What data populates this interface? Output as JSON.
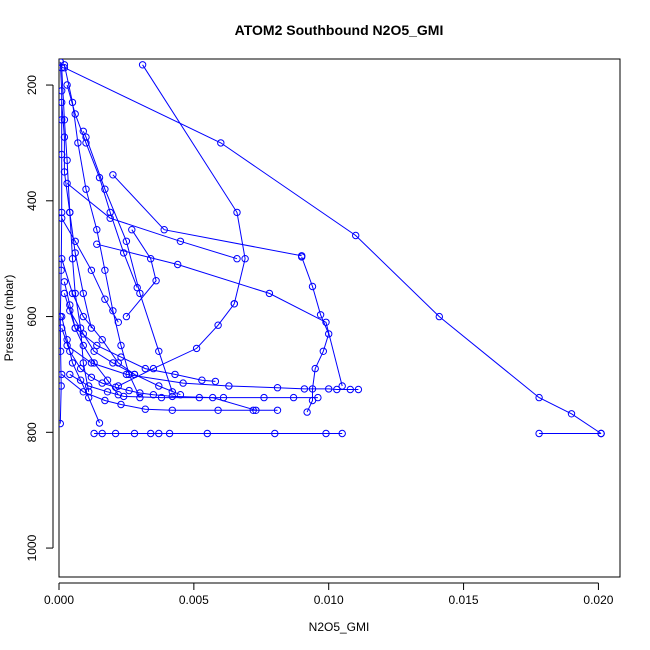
{
  "chart_data": {
    "type": "line",
    "title": "ATOM2 Southbound N2O5_GMI",
    "xlabel": "N2O5_GMI",
    "ylabel": "Pressure (mbar)",
    "xlim": [
      0.0,
      0.0208
    ],
    "ylim": [
      1050,
      155
    ],
    "y_reversed": true,
    "x_ticks": [
      0.0,
      0.005,
      0.01,
      0.015,
      0.02
    ],
    "x_tick_labels": [
      "0.000",
      "0.005",
      "0.010",
      "0.015",
      "0.020"
    ],
    "y_ticks": [
      200,
      400,
      600,
      800,
      1000
    ],
    "y_tick_labels": [
      "200",
      "400",
      "600",
      "800",
      "1000"
    ],
    "series_color": "#0000ff",
    "grid": false,
    "marker": "open-circle",
    "series": [
      {
        "x": [
          5e-05,
          0.0001,
          0.0001,
          0.0001,
          0.0001,
          8e-05,
          5e-05,
          6e-05,
          8e-05,
          5e-05
        ],
        "y": [
          160,
          210,
          260,
          320,
          420,
          520,
          600,
          660,
          720,
          785
        ]
      },
      {
        "x": [
          0.0001,
          0.0002,
          0.0003,
          0.0004,
          0.0005,
          0.0006,
          0.0008,
          0.0009,
          0.0011
        ],
        "y": [
          170,
          260,
          330,
          420,
          500,
          560,
          620,
          680,
          730
        ]
      },
      {
        "x": [
          0.0002,
          0.0005,
          0.0007,
          0.001,
          0.0014,
          0.0017,
          0.002,
          0.0023,
          0.0026,
          0.003
        ],
        "y": [
          165,
          230,
          300,
          380,
          450,
          520,
          590,
          650,
          700,
          740
        ]
      },
      {
        "x": [
          0.0009,
          0.001,
          0.0017,
          0.0025,
          0.003,
          0.0037,
          0.0042
        ],
        "y": [
          280,
          290,
          380,
          470,
          560,
          660,
          730
        ]
      },
      {
        "x": [
          0.002,
          0.0039,
          0.009
        ],
        "y": [
          355,
          450,
          495
        ]
      },
      {
        "x": [
          0.0003,
          0.0019,
          0.0045,
          0.0066
        ],
        "y": [
          370,
          430,
          470,
          500
        ]
      },
      {
        "x": [
          0.0027,
          0.0034,
          0.0036,
          0.0025
        ],
        "y": [
          450,
          500,
          538,
          600
        ]
      },
      {
        "x": [
          0.0031,
          0.0066,
          0.0069,
          0.0065
        ],
        "y": [
          165,
          420,
          500,
          578
        ]
      },
      {
        "x": [
          0.0065,
          0.0059,
          0.0051,
          0.0035,
          0.0022
        ],
        "y": [
          578,
          615,
          655,
          690,
          720
        ]
      },
      {
        "x": [
          0.009,
          0.0094,
          0.0097,
          0.01,
          0.0098,
          0.0095,
          0.0094,
          0.0094,
          0.0092
        ],
        "y": [
          497,
          548,
          597,
          630,
          660,
          690,
          725,
          745,
          765
        ]
      },
      {
        "x": [
          0.0014,
          0.0044,
          0.0078,
          0.0099,
          0.0105
        ],
        "y": [
          475,
          510,
          560,
          610,
          720
        ]
      },
      {
        "x": [
          0.0002,
          0.006,
          0.011,
          0.0141,
          0.0178,
          0.019,
          0.0201
        ],
        "y": [
          170,
          300,
          460,
          600,
          740,
          768,
          802
        ]
      },
      {
        "x": [
          0.0013,
          0.0016,
          0.0021,
          0.0028,
          0.0034,
          0.0037,
          0.0041,
          0.0055,
          0.008,
          0.0099,
          0.0105
        ],
        "y": [
          802,
          802,
          802,
          802,
          802,
          802,
          802,
          802,
          802,
          802,
          802
        ]
      },
      {
        "x": [
          0.0178,
          0.0201
        ],
        "y": [
          802,
          802
        ]
      },
      {
        "x": [
          0.0003,
          0.0012,
          0.0025,
          0.0046,
          0.0063,
          0.0081,
          0.0091,
          0.01,
          0.0103,
          0.0108,
          0.0111
        ],
        "y": [
          650,
          680,
          700,
          715,
          720,
          723,
          725,
          725,
          726,
          726,
          726
        ]
      },
      {
        "x": [
          0.0004,
          0.0011,
          0.0018,
          0.0024,
          0.0038,
          0.0052,
          0.0061,
          0.0076,
          0.0087,
          0.0096
        ],
        "y": [
          700,
          720,
          730,
          738,
          740,
          740,
          740,
          740,
          740,
          740
        ]
      },
      {
        "x": [
          0.0001,
          0.0009,
          0.0017,
          0.0023,
          0.0032,
          0.0042,
          0.0059,
          0.0072,
          0.0081
        ],
        "y": [
          700,
          730,
          745,
          752,
          760,
          762,
          762,
          762,
          762
        ]
      },
      {
        "x": [
          0.0002,
          0.0006,
          0.0014,
          0.0023,
          0.0032,
          0.0043,
          0.0053,
          0.0058
        ],
        "y": [
          560,
          620,
          650,
          670,
          690,
          700,
          710,
          712
        ]
      },
      {
        "x": [
          0.0004,
          0.0009,
          0.0013,
          0.002,
          0.0028,
          0.0037,
          0.0045
        ],
        "y": [
          590,
          630,
          660,
          680,
          700,
          720,
          735
        ]
      },
      {
        "x": [
          0.0001,
          0.0005,
          0.0009,
          0.0016,
          0.0022,
          0.0028
        ],
        "y": [
          500,
          560,
          600,
          640,
          680,
          700
        ]
      },
      {
        "x": [
          0.0002,
          0.0004,
          0.0006,
          0.0009,
          0.0013,
          0.0018,
          0.0022
        ],
        "y": [
          540,
          580,
          620,
          650,
          680,
          710,
          735
        ]
      },
      {
        "x": [
          0.0001,
          0.0003,
          0.0005,
          0.0008,
          0.0011,
          0.0015
        ],
        "y": [
          600,
          640,
          680,
          710,
          740,
          784
        ]
      },
      {
        "x": [
          0.0001,
          0.0004,
          0.0008,
          0.0012,
          0.0016,
          0.0021,
          0.0026,
          0.003,
          0.0035,
          0.0042,
          0.0057,
          0.0073
        ],
        "y": [
          620,
          660,
          690,
          705,
          715,
          722,
          728,
          732,
          735,
          738,
          740,
          762
        ]
      },
      {
        "x": [
          0.0001,
          0.0006,
          0.0012,
          0.0017,
          0.0022
        ],
        "y": [
          430,
          470,
          520,
          570,
          610
        ]
      },
      {
        "x": [
          0.0003,
          0.0006,
          0.001,
          0.0015,
          0.0019,
          0.0024,
          0.0029
        ],
        "y": [
          200,
          250,
          300,
          360,
          420,
          490,
          550
        ]
      },
      {
        "x": [
          0.0001,
          0.0002,
          0.0002,
          0.0004,
          0.0006,
          0.0009,
          0.0012
        ],
        "y": [
          230,
          290,
          350,
          420,
          490,
          560,
          620
        ]
      }
    ]
  }
}
